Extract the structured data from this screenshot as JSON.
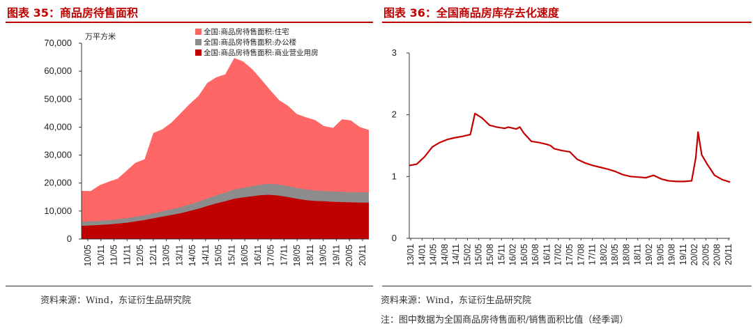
{
  "left_panel": {
    "title": "图表 35：商品房待售面积",
    "unit": "万平方米",
    "source": "资料来源：Wind，东证衍生品研究院",
    "legend": [
      {
        "label": "全国:商品房待售面积:住宅",
        "color": "#ff6666"
      },
      {
        "label": "全国:商品房待售面积:办公楼",
        "color": "#8c8c8c"
      },
      {
        "label": "全国:商品房待售面积:商业营业用房",
        "color": "#c00000"
      }
    ]
  },
  "right_panel": {
    "title": "图表 36：全国商品房库存去化速度",
    "source": "资料来源：Wind，东证衍生品研究院",
    "note": "注：图中数据为全国商品房待售面积/销售面积比值（经季调）"
  },
  "chart_data": [
    {
      "type": "area",
      "stacked": true,
      "title": "图表 35：商品房待售面积",
      "ylabel": "万平方米",
      "ylim": [
        0,
        70000
      ],
      "yticks": [
        0,
        10000,
        20000,
        30000,
        40000,
        50000,
        60000,
        70000
      ],
      "ytick_labels": [
        "0",
        "10,000",
        "20,000",
        "30,000",
        "40,000",
        "50,000",
        "60,000",
        "70,000"
      ],
      "x_range": [
        2010.333,
        2021.0
      ],
      "xtick_labels": [
        "10/05",
        "10/11",
        "11/05",
        "11/11",
        "12/05",
        "12/11",
        "13/05",
        "13/11",
        "14/05",
        "14/11",
        "15/05",
        "15/11",
        "16/05",
        "16/11",
        "17/05",
        "17/11",
        "18/05",
        "18/11",
        "19/05",
        "19/11",
        "20/05",
        "20/11"
      ],
      "grid": false,
      "legend": "top",
      "series": [
        {
          "name": "全国:商品房待售面积:商业营业用房",
          "color": "#c00000",
          "points": [
            [
              2010.33,
              4700
            ],
            [
              2010.67,
              4850
            ],
            [
              2011.0,
              5000
            ],
            [
              2011.33,
              5200
            ],
            [
              2011.67,
              5500
            ],
            [
              2012.0,
              5800
            ],
            [
              2012.33,
              6300
            ],
            [
              2012.67,
              6800
            ],
            [
              2013.0,
              7400
            ],
            [
              2013.33,
              8000
            ],
            [
              2013.67,
              8600
            ],
            [
              2014.0,
              9200
            ],
            [
              2014.33,
              10000
            ],
            [
              2014.67,
              10800
            ],
            [
              2015.0,
              11800
            ],
            [
              2015.33,
              12700
            ],
            [
              2015.67,
              13500
            ],
            [
              2016.0,
              14400
            ],
            [
              2016.33,
              14900
            ],
            [
              2016.67,
              15300
            ],
            [
              2017.0,
              15700
            ],
            [
              2017.33,
              15800
            ],
            [
              2017.67,
              15500
            ],
            [
              2018.0,
              15000
            ],
            [
              2018.33,
              14400
            ],
            [
              2018.67,
              13900
            ],
            [
              2019.0,
              13600
            ],
            [
              2019.33,
              13500
            ],
            [
              2019.67,
              13300
            ],
            [
              2020.0,
              13200
            ],
            [
              2020.33,
              13100
            ],
            [
              2020.67,
              13000
            ],
            [
              2021.0,
              13000
            ]
          ]
        },
        {
          "name": "全国:商品房待售面积:办公楼",
          "color": "#8c8c8c",
          "points": [
            [
              2010.33,
              1500
            ],
            [
              2010.67,
              1500
            ],
            [
              2011.0,
              1500
            ],
            [
              2011.33,
              1550
            ],
            [
              2011.67,
              1550
            ],
            [
              2012.0,
              1600
            ],
            [
              2012.33,
              1650
            ],
            [
              2012.67,
              1700
            ],
            [
              2013.0,
              1800
            ],
            [
              2013.33,
              1900
            ],
            [
              2013.67,
              2000
            ],
            [
              2014.0,
              2150
            ],
            [
              2014.33,
              2300
            ],
            [
              2014.67,
              2500
            ],
            [
              2015.0,
              2700
            ],
            [
              2015.33,
              2900
            ],
            [
              2015.67,
              3100
            ],
            [
              2016.0,
              3300
            ],
            [
              2016.33,
              3400
            ],
            [
              2016.67,
              3600
            ],
            [
              2017.0,
              3800
            ],
            [
              2017.33,
              3900
            ],
            [
              2017.67,
              3950
            ],
            [
              2018.0,
              3900
            ],
            [
              2018.33,
              3850
            ],
            [
              2018.67,
              3800
            ],
            [
              2019.0,
              3750
            ],
            [
              2019.33,
              3700
            ],
            [
              2019.67,
              3700
            ],
            [
              2020.0,
              3700
            ],
            [
              2020.33,
              3700
            ],
            [
              2020.67,
              3700
            ],
            [
              2021.0,
              3700
            ]
          ]
        },
        {
          "name": "全国:商品房待售面积:住宅",
          "color": "#ff6666",
          "points": [
            [
              2010.33,
              11000
            ],
            [
              2010.67,
              10800
            ],
            [
              2011.0,
              12700
            ],
            [
              2011.33,
              13700
            ],
            [
              2011.67,
              14500
            ],
            [
              2012.0,
              17000
            ],
            [
              2012.33,
              19300
            ],
            [
              2012.67,
              20000
            ],
            [
              2013.0,
              28700
            ],
            [
              2013.33,
              29300
            ],
            [
              2013.67,
              31000
            ],
            [
              2014.0,
              33500
            ],
            [
              2014.33,
              35800
            ],
            [
              2014.67,
              37800
            ],
            [
              2015.0,
              41300
            ],
            [
              2015.33,
              42200
            ],
            [
              2015.67,
              42300
            ],
            [
              2016.0,
              47000
            ],
            [
              2016.33,
              45200
            ],
            [
              2016.67,
              41800
            ],
            [
              2017.0,
              37600
            ],
            [
              2017.33,
              33600
            ],
            [
              2017.67,
              30200
            ],
            [
              2018.0,
              28700
            ],
            [
              2018.33,
              26400
            ],
            [
              2018.67,
              25800
            ],
            [
              2019.0,
              25200
            ],
            [
              2019.33,
              23200
            ],
            [
              2019.67,
              22700
            ],
            [
              2020.0,
              25900
            ],
            [
              2020.33,
              25600
            ],
            [
              2020.67,
              23300
            ],
            [
              2021.0,
              22300
            ]
          ]
        }
      ]
    },
    {
      "type": "line",
      "title": "图表 36：全国商品房库存去化速度",
      "ylim": [
        0,
        3
      ],
      "yticks": [
        0,
        1,
        2,
        3
      ],
      "ytick_labels": [
        "0",
        "1",
        "2",
        "3"
      ],
      "x_range": [
        2013.917,
        2020.917
      ],
      "xtick_labels": [
        "13/01",
        "14/01",
        "14/05",
        "14/08",
        "14/11",
        "15/02",
        "15/05",
        "15/08",
        "15/11",
        "16/02",
        "16/05",
        "16/08",
        "16/11",
        "17/02",
        "17/05",
        "17/08",
        "17/11",
        "18/02",
        "18/05",
        "18/08",
        "18/11",
        "19/02",
        "19/05",
        "19/08",
        "19/11",
        "20/02",
        "20/05",
        "20/08",
        "20/11"
      ],
      "grid": false,
      "series": [
        {
          "color": "#c00000",
          "points": [
            [
              2013.92,
              1.18
            ],
            [
              2014.08,
              1.2
            ],
            [
              2014.25,
              1.32
            ],
            [
              2014.42,
              1.48
            ],
            [
              2014.58,
              1.55
            ],
            [
              2014.75,
              1.6
            ],
            [
              2014.92,
              1.63
            ],
            [
              2015.08,
              1.65
            ],
            [
              2015.25,
              1.68
            ],
            [
              2015.35,
              2.02
            ],
            [
              2015.5,
              1.95
            ],
            [
              2015.67,
              1.83
            ],
            [
              2015.83,
              1.8
            ],
            [
              2016.0,
              1.78
            ],
            [
              2016.08,
              1.8
            ],
            [
              2016.25,
              1.77
            ],
            [
              2016.33,
              1.8
            ],
            [
              2016.42,
              1.7
            ],
            [
              2016.58,
              1.57
            ],
            [
              2016.75,
              1.55
            ],
            [
              2016.92,
              1.52
            ],
            [
              2017.0,
              1.5
            ],
            [
              2017.08,
              1.45
            ],
            [
              2017.25,
              1.42
            ],
            [
              2017.42,
              1.4
            ],
            [
              2017.58,
              1.28
            ],
            [
              2017.75,
              1.22
            ],
            [
              2017.92,
              1.18
            ],
            [
              2018.08,
              1.15
            ],
            [
              2018.25,
              1.12
            ],
            [
              2018.42,
              1.08
            ],
            [
              2018.58,
              1.03
            ],
            [
              2018.75,
              1.0
            ],
            [
              2018.92,
              0.99
            ],
            [
              2019.08,
              0.98
            ],
            [
              2019.25,
              1.02
            ],
            [
              2019.42,
              0.96
            ],
            [
              2019.58,
              0.93
            ],
            [
              2019.75,
              0.92
            ],
            [
              2019.92,
              0.92
            ],
            [
              2020.08,
              0.93
            ],
            [
              2020.17,
              1.3
            ],
            [
              2020.22,
              1.72
            ],
            [
              2020.3,
              1.35
            ],
            [
              2020.42,
              1.2
            ],
            [
              2020.58,
              1.02
            ],
            [
              2020.75,
              0.95
            ],
            [
              2020.92,
              0.91
            ]
          ]
        }
      ]
    }
  ]
}
